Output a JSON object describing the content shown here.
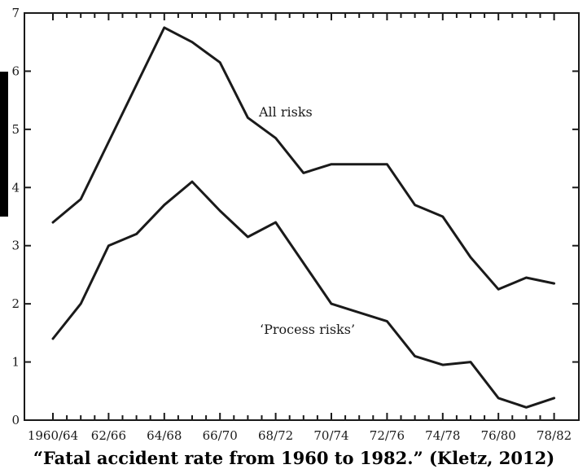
{
  "caption": "“Fatal accident rate from 1960 to 1982.” (Kletz, 2012)",
  "chart_data": {
    "type": "line",
    "title": "",
    "xlabel": "",
    "ylabel": "",
    "ylim": [
      0,
      7
    ],
    "yticks": [
      0,
      1,
      2,
      3,
      4,
      5,
      6,
      7
    ],
    "x_tick_labels": [
      "1960/64",
      "62/66",
      "64/68",
      "66/70",
      "68/72",
      "70/74",
      "72/76",
      "74/78",
      "76/80",
      "78/82"
    ],
    "x": [
      0,
      0.5,
      1,
      1.5,
      2,
      2.5,
      3,
      3.5,
      4,
      4.5,
      5,
      5.5,
      6,
      6.5,
      7,
      7.5,
      8,
      8.5,
      9,
      9.5,
      10,
      10.5,
      11,
      11.5,
      12,
      12.5,
      13,
      13.5,
      14,
      14.5,
      15,
      15.5,
      16,
      16.5,
      17,
      17.5,
      18
    ],
    "series": [
      {
        "name": "All risks",
        "points": [
          [
            0,
            3.4
          ],
          [
            1,
            3.8
          ],
          [
            4,
            6.75
          ],
          [
            5,
            6.5
          ],
          [
            6,
            6.15
          ],
          [
            7,
            5.2
          ],
          [
            8,
            4.85
          ],
          [
            9,
            4.25
          ],
          [
            10,
            4.4
          ],
          [
            12,
            4.4
          ],
          [
            13,
            3.7
          ],
          [
            14,
            3.5
          ],
          [
            15,
            2.8
          ],
          [
            16,
            2.25
          ],
          [
            17,
            2.45
          ],
          [
            18,
            2.35
          ]
        ]
      },
      {
        "name": "‘Process risks’",
        "points": [
          [
            0,
            1.4
          ],
          [
            1,
            2.0
          ],
          [
            2,
            3.0
          ],
          [
            3,
            3.2
          ],
          [
            4,
            3.7
          ],
          [
            5,
            4.1
          ],
          [
            6,
            3.6
          ],
          [
            7,
            3.15
          ],
          [
            8,
            3.4
          ],
          [
            10,
            2.0
          ],
          [
            12,
            1.7
          ],
          [
            13,
            1.1
          ],
          [
            14,
            0.95
          ],
          [
            15,
            1.0
          ],
          [
            16,
            0.38
          ],
          [
            17,
            0.22
          ],
          [
            18,
            0.38
          ]
        ]
      }
    ]
  }
}
